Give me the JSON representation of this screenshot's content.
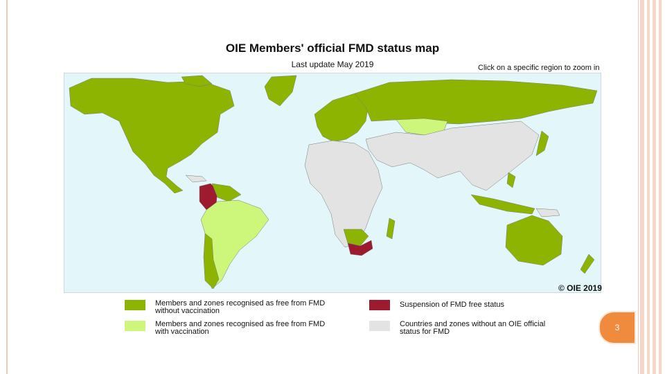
{
  "slide": {
    "title": "OIE Members' official FMD status map",
    "subtitle": "Last update May 2019",
    "zoom_hint": "Click on a specific region to zoom in",
    "copyright": "© OIE 2019",
    "page_number": "3"
  },
  "legend": [
    {
      "label": "Members and zones recognised as free from FMD without vaccination",
      "color": "#8cb400"
    },
    {
      "label": "Suspension of FMD free status",
      "color": "#9e1a2f"
    },
    {
      "label": "Members and zones recognised as free from FMD with vaccination",
      "color": "#ccf77a"
    },
    {
      "label": "Countries and zones without an OIE official status for FMD",
      "color": "#e3e3e3"
    }
  ],
  "colors": {
    "ocean": "#e3f6fa",
    "border": "#7a7a7a",
    "accent": "#f08a3c"
  }
}
